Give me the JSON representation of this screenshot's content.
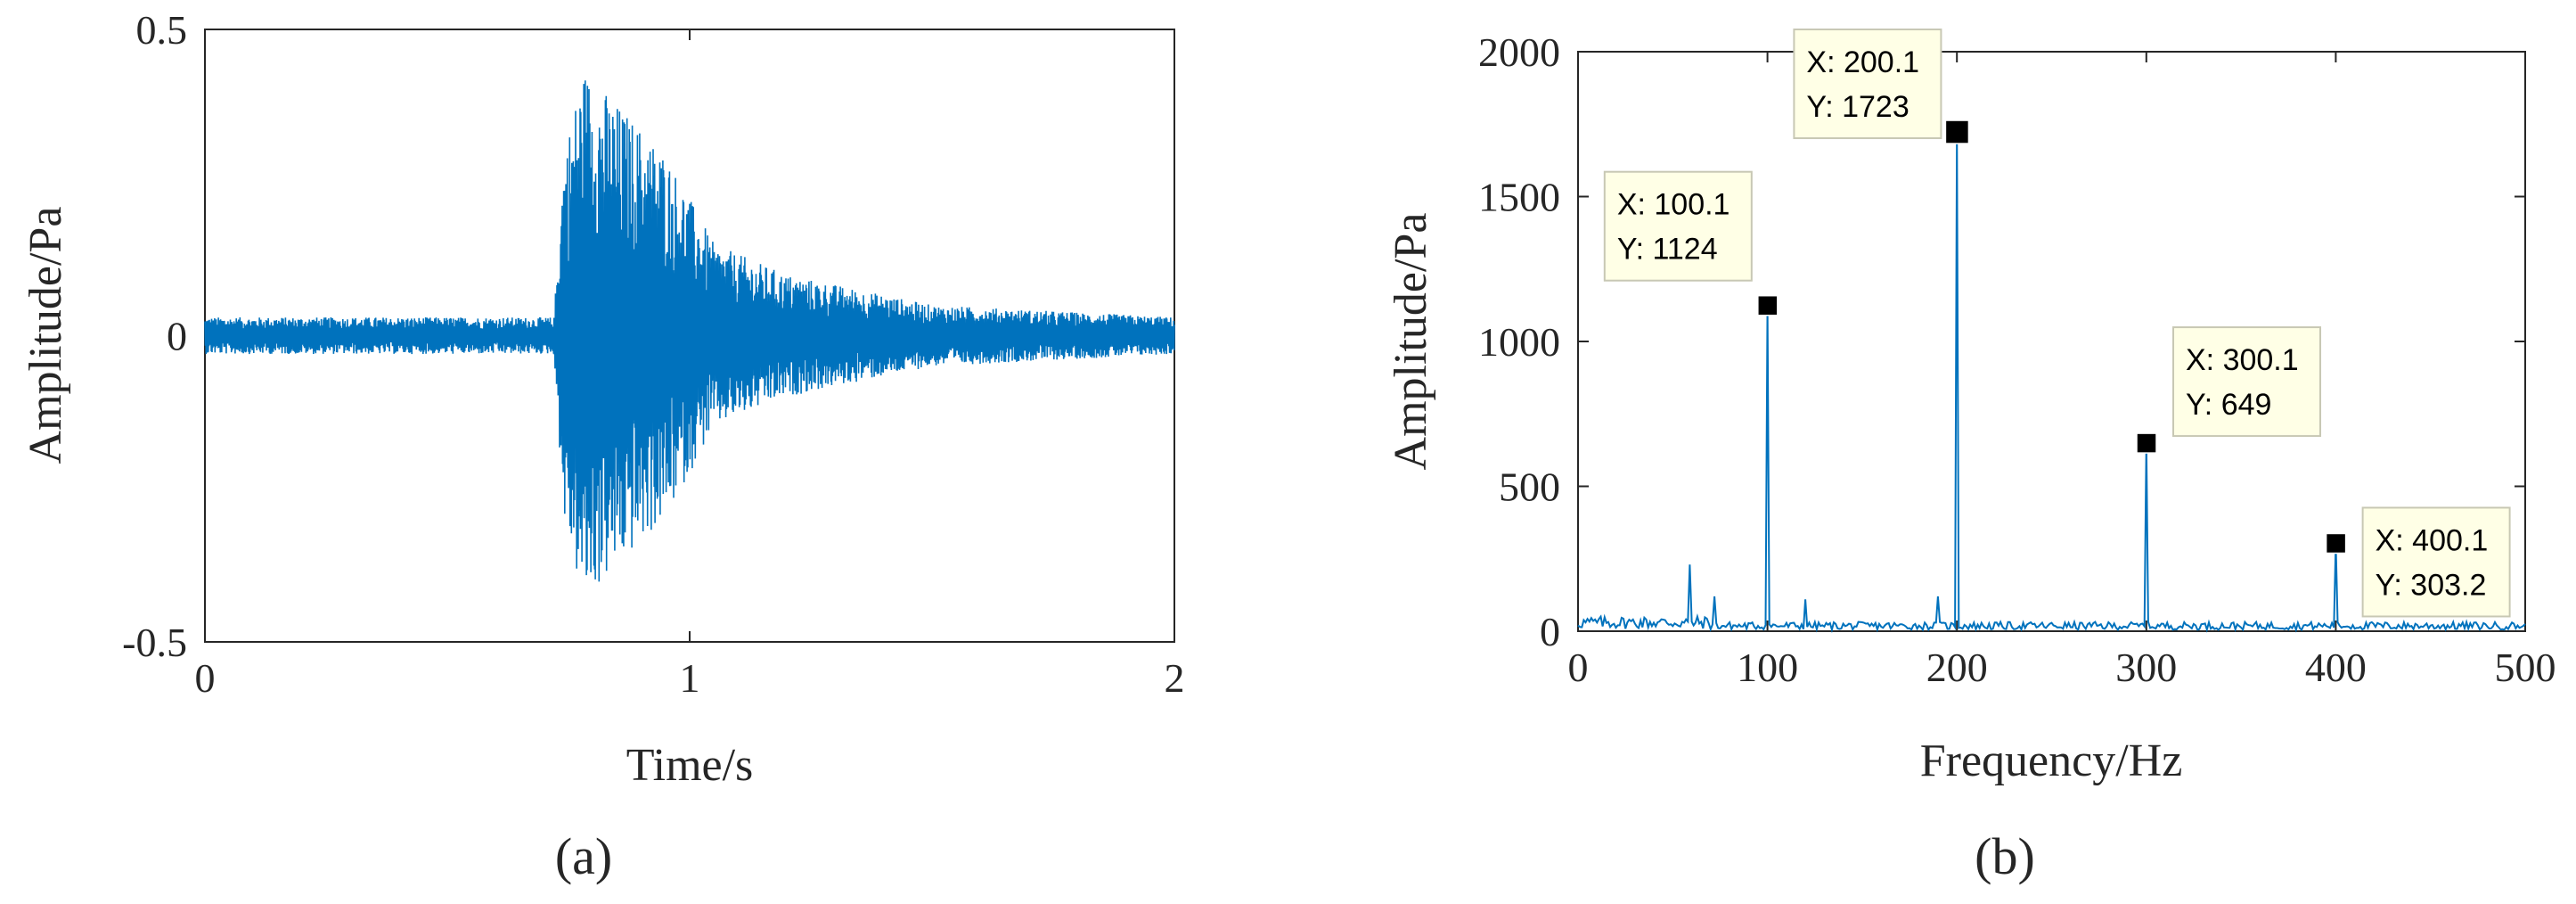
{
  "chart_data": [
    {
      "type": "line",
      "panel": "(a)",
      "xlabel": "Time/s",
      "ylabel": "Amplitude/Pa",
      "xlim": [
        0,
        2
      ],
      "ylim": [
        -0.5,
        0.5
      ],
      "xticks": [
        "0",
        "1",
        "2"
      ],
      "yticks": [
        "-0.5",
        "0",
        "0.5"
      ],
      "series_color": "#0072BD",
      "signal_envelope": [
        {
          "t": 0.0,
          "a": 0.03
        },
        {
          "t": 0.72,
          "a": 0.03
        },
        {
          "t": 0.74,
          "a": 0.3
        },
        {
          "t": 0.78,
          "a": 0.44
        },
        {
          "t": 0.85,
          "a": 0.38
        },
        {
          "t": 0.95,
          "a": 0.3
        },
        {
          "t": 1.05,
          "a": 0.15
        },
        {
          "t": 1.2,
          "a": 0.1
        },
        {
          "t": 1.5,
          "a": 0.05
        },
        {
          "t": 2.0,
          "a": 0.03
        }
      ]
    },
    {
      "type": "line",
      "panel": "(b)",
      "xlabel": "Frequency/Hz",
      "ylabel": "Amplitude/Pa",
      "xlim": [
        0,
        500
      ],
      "ylim": [
        0,
        2000
      ],
      "xticks": [
        "0",
        "100",
        "200",
        "300",
        "400",
        "500"
      ],
      "yticks": [
        "0",
        "500",
        "1000",
        "1500",
        "2000"
      ],
      "series_color": "#0072BD",
      "peaks": [
        {
          "x": 100.1,
          "y": 1124
        },
        {
          "x": 200.1,
          "y": 1723
        },
        {
          "x": 300.1,
          "y": 649
        },
        {
          "x": 400.1,
          "y": 303.2
        }
      ],
      "minor_peaks": [
        {
          "x": 59,
          "y": 230
        },
        {
          "x": 72,
          "y": 120
        },
        {
          "x": 120,
          "y": 110
        },
        {
          "x": 190,
          "y": 120
        }
      ],
      "noise_floor": 40,
      "datatips": [
        {
          "x": "X: 100.1",
          "y": "Y: 1124"
        },
        {
          "x": "X: 200.1",
          "y": "Y: 1723"
        },
        {
          "x": "X: 300.1",
          "y": "Y: 649"
        },
        {
          "x": "X: 400.1",
          "y": "Y: 303.2"
        }
      ]
    }
  ]
}
